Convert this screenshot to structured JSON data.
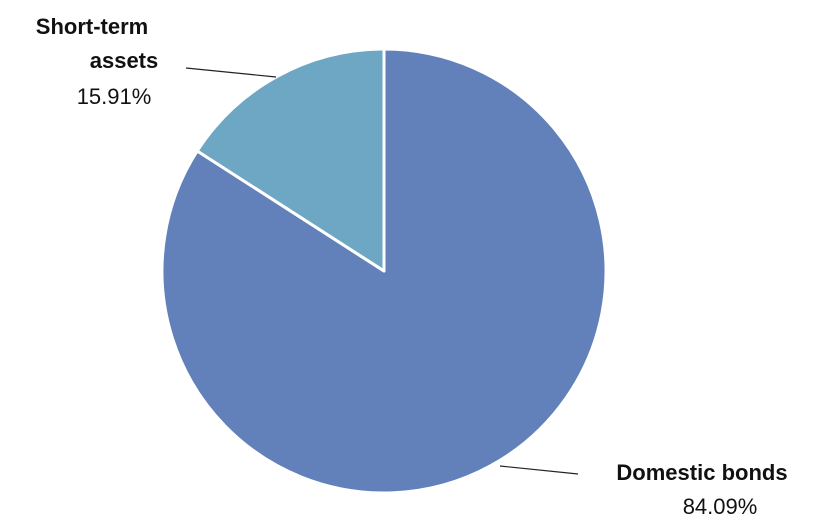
{
  "chart_data": {
    "type": "pie",
    "slices": [
      {
        "label": "Domestic bonds",
        "value": 84.09,
        "value_label": "84.09%",
        "color": "#6280b9"
      },
      {
        "label": "Short-term assets",
        "value": 15.91,
        "value_label": "15.91%",
        "color": "#6ea7c4"
      }
    ],
    "title": "",
    "legend": "none",
    "slice_border_color": "#ffffff"
  }
}
